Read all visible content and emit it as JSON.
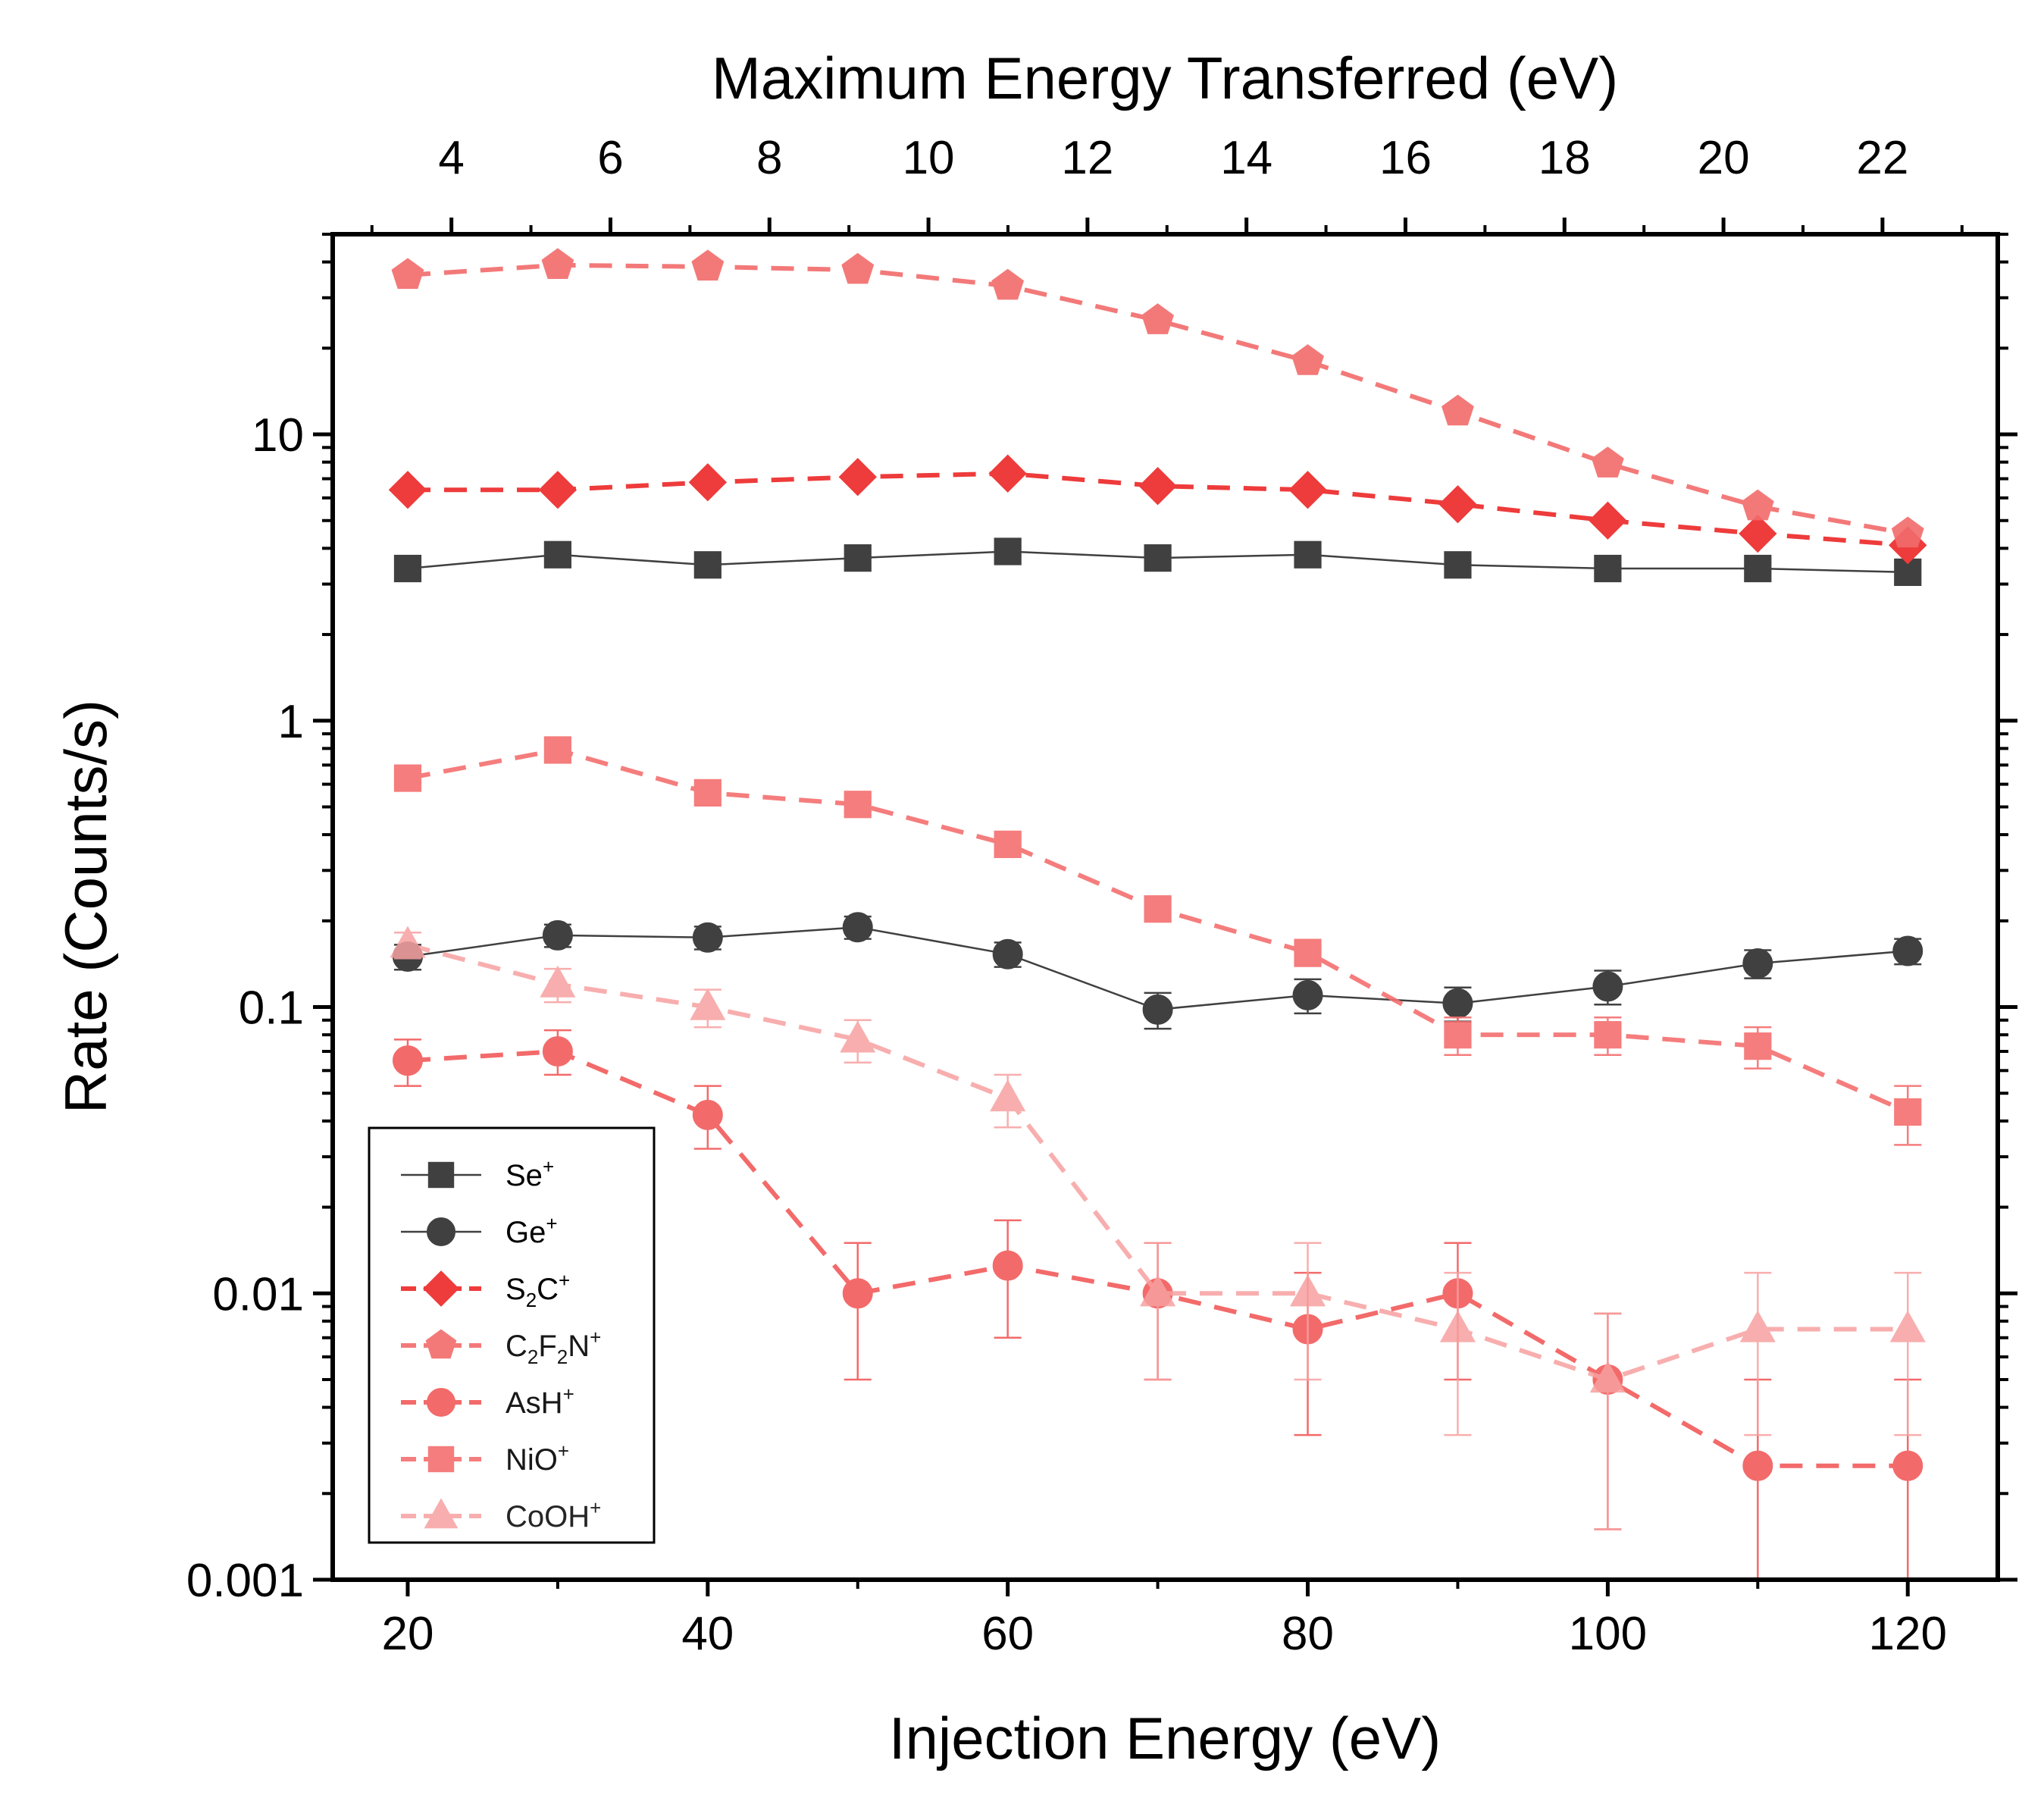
{
  "chart_data": {
    "type": "scatter",
    "xlabel": "Injection Energy (eV)",
    "ylabel": "Rate (Counts/s)",
    "top_xlabel": "Maximum Energy Transferred (eV)",
    "xlim": [
      15,
      126
    ],
    "ylim": [
      0.001,
      50
    ],
    "yscale": "log",
    "x_ticks": [
      "20",
      "40",
      "60",
      "80",
      "100",
      "120"
    ],
    "y_ticks": [
      "0.001",
      "0.01",
      "0.1",
      "1",
      "10"
    ],
    "top_ticks": [
      "4",
      "6",
      "8",
      "10",
      "12",
      "14",
      "16",
      "18",
      "20",
      "22"
    ],
    "legend_position": "bottom-left",
    "series": [
      {
        "name": "Se+",
        "label_parts": [
          "Se",
          "",
          "+"
        ],
        "color": "#404040",
        "marker": "square",
        "line": "solid",
        "x": [
          20,
          30,
          40,
          50,
          60,
          70,
          80,
          90,
          100,
          110,
          120
        ],
        "y": [
          3.4,
          3.8,
          3.5,
          3.7,
          3.9,
          3.7,
          3.8,
          3.5,
          3.4,
          3.4,
          3.3
        ]
      },
      {
        "name": "Ge+",
        "label_parts": [
          "Ge",
          "",
          "+"
        ],
        "color": "#404040",
        "marker": "circle",
        "line": "solid",
        "x": [
          20,
          30,
          40,
          50,
          60,
          70,
          80,
          90,
          100,
          110,
          120
        ],
        "y": [
          0.15,
          0.178,
          0.175,
          0.19,
          0.153,
          0.098,
          0.11,
          0.103,
          0.118,
          0.142,
          0.157
        ],
        "err": [
          0.015,
          0.016,
          0.016,
          0.017,
          0.015,
          0.014,
          0.015,
          0.014,
          0.016,
          0.016,
          0.016
        ]
      },
      {
        "name": "S2C+",
        "label_parts": [
          "S",
          "2",
          "C",
          "",
          "+"
        ],
        "color": "#ee3b3b",
        "marker": "diamond",
        "line": "dashed",
        "x": [
          20,
          30,
          40,
          50,
          60,
          70,
          80,
          90,
          100,
          110,
          120
        ],
        "y": [
          6.4,
          6.4,
          6.8,
          7.1,
          7.3,
          6.6,
          6.4,
          5.7,
          5.0,
          4.5,
          4.1
        ]
      },
      {
        "name": "C2F2N+",
        "label_parts": [
          "C",
          "2",
          "F",
          "2",
          "N",
          "",
          "+"
        ],
        "color": "#f26b6b",
        "marker": "pentagon",
        "line": "dashed",
        "x": [
          20,
          30,
          40,
          50,
          60,
          70,
          80,
          90,
          100,
          110,
          120
        ],
        "y": [
          36,
          39,
          38.5,
          37.5,
          33,
          25,
          18,
          12,
          7.9,
          5.6,
          4.5
        ]
      },
      {
        "name": "AsH+",
        "label_parts": [
          "AsH",
          "",
          "+"
        ],
        "color": "#f25a5a",
        "marker": "circle",
        "line": "dashed",
        "x": [
          20,
          30,
          40,
          50,
          60,
          70,
          80,
          90,
          100,
          110,
          120
        ],
        "y": [
          0.065,
          0.07,
          0.042,
          0.01,
          0.0125,
          0.01,
          0.0075,
          0.01,
          0.005,
          0.0025,
          0.0025
        ],
        "err_low": [
          0.053,
          0.058,
          0.032,
          0.005,
          0.007,
          0.005,
          0.0032,
          0.005,
          0.0015,
          0.0009,
          0.0009
        ],
        "err_high": [
          0.077,
          0.083,
          0.053,
          0.015,
          0.018,
          0.015,
          0.0118,
          0.015,
          0.0085,
          0.005,
          0.005
        ]
      },
      {
        "name": "NiO+",
        "label_parts": [
          "NiO",
          "",
          "+"
        ],
        "color": "#f46f6f",
        "marker": "square",
        "line": "dashed",
        "x": [
          20,
          30,
          40,
          50,
          60,
          70,
          80,
          90,
          100,
          110,
          120
        ],
        "y": [
          0.63,
          0.79,
          0.56,
          0.51,
          0.37,
          0.22,
          0.155,
          0.08,
          0.08,
          0.073,
          0.043
        ],
        "err": [
          0.03,
          0.035,
          0.03,
          0.03,
          0.025,
          0.02,
          0.016,
          0.012,
          0.012,
          0.012,
          0.01
        ]
      },
      {
        "name": "CoOH+",
        "label_parts": [
          "CoOH",
          "",
          "+"
        ],
        "color": "#f7a1a1",
        "marker": "triangle",
        "line": "dashed",
        "x": [
          20,
          30,
          40,
          50,
          60,
          70,
          80,
          90,
          100,
          110,
          120
        ],
        "y": [
          0.165,
          0.12,
          0.1,
          0.077,
          0.048,
          0.01,
          0.01,
          0.0075,
          0.005,
          0.0075,
          0.0075
        ],
        "err_low": [
          0.148,
          0.104,
          0.085,
          0.064,
          0.038,
          0.005,
          0.005,
          0.0032,
          0.0015,
          0.0032,
          0.0032
        ],
        "err_high": [
          0.182,
          0.136,
          0.115,
          0.09,
          0.058,
          0.015,
          0.015,
          0.0118,
          0.0085,
          0.0118,
          0.0118
        ]
      }
    ]
  }
}
